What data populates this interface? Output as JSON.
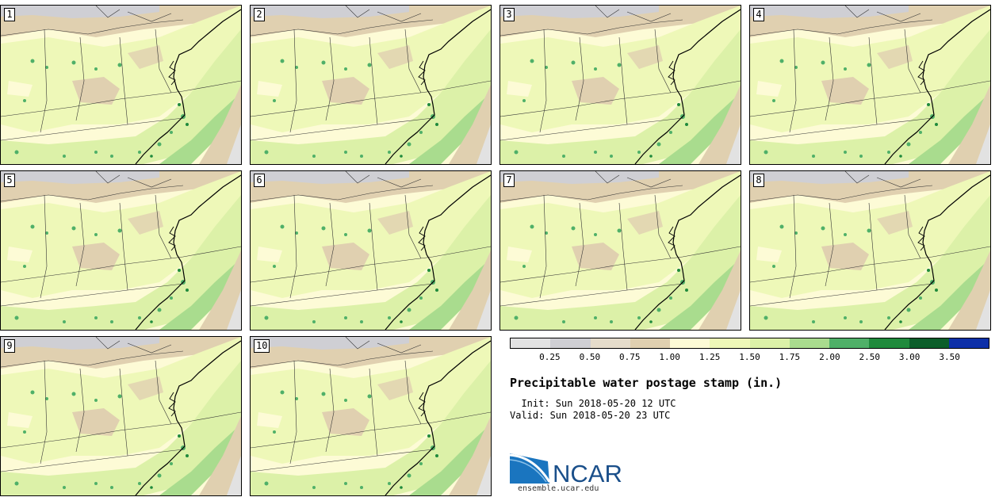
{
  "figure": {
    "title": "Precipitable water postage stamp (in.)",
    "init_label": "  Init: Sun 2018-05-20 12 UTC",
    "valid_label": "Valid: Sun 2018-05-20 23 UTC"
  },
  "members": [
    "1",
    "2",
    "3",
    "4",
    "5",
    "6",
    "7",
    "8",
    "9",
    "10"
  ],
  "colorbar": {
    "colors": [
      "#e2e2e2",
      "#cfcfd4",
      "#e5dccb",
      "#e0d0b0",
      "#fdfbd6",
      "#eef8b8",
      "#dcf1a8",
      "#a9dc8e",
      "#4fb068",
      "#1f8a3c",
      "#0b5e2a",
      "#0c2fa8"
    ],
    "ticks": [
      "0.25",
      "0.50",
      "0.75",
      "1.00",
      "1.25",
      "1.50",
      "1.75",
      "2.00",
      "2.50",
      "3.00",
      "3.50"
    ]
  },
  "logo": {
    "name": "NCAR",
    "url": "ensemble.ucar.edu"
  }
}
